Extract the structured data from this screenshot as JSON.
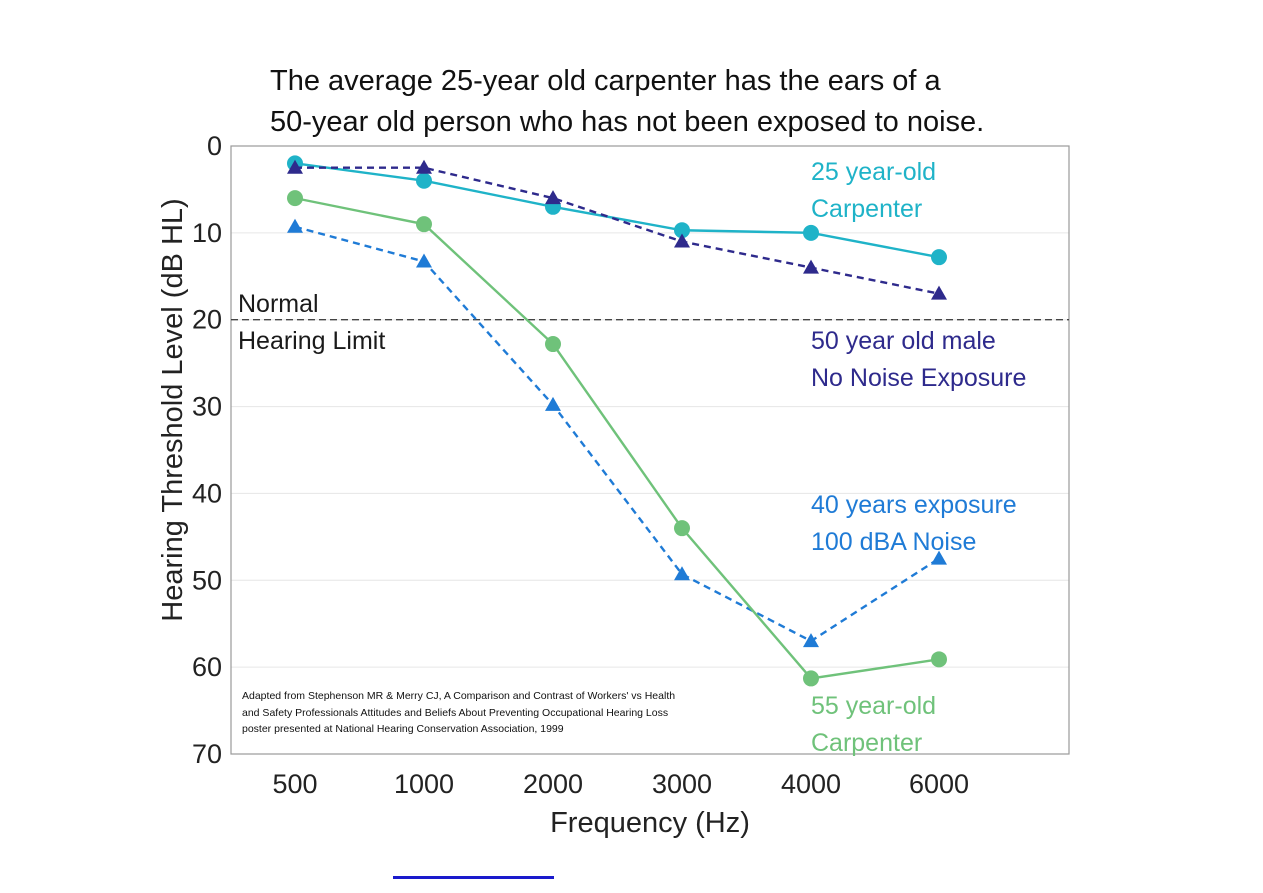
{
  "chart_data": {
    "type": "line",
    "title_lines": [
      "The average 25-year old carpenter has the ears of a",
      "50-year old person who has not been exposed to noise."
    ],
    "xlabel": "Frequency (Hz)",
    "ylabel": "Hearing Threshold Level (dB HL)",
    "categories": [
      "500",
      "1000",
      "2000",
      "3000",
      "4000",
      "6000"
    ],
    "ylim": [
      0,
      70
    ],
    "yticks": [
      0,
      10,
      20,
      30,
      40,
      50,
      60,
      70
    ],
    "y_inverted": true,
    "grid": true,
    "series": [
      {
        "name": "25 year-old Carpenter",
        "label_lines": [
          "25 year-old",
          "Carpenter"
        ],
        "color": "#1fb3c8",
        "marker": "circle",
        "line_style": "solid",
        "values": [
          2,
          4,
          7,
          9.7,
          10,
          12.8
        ]
      },
      {
        "name": "50 year old male No Noise Exposure",
        "label_lines": [
          "50 year old male",
          "No Noise Exposure"
        ],
        "color": "#2e2a8c",
        "marker": "triangle",
        "line_style": "dashed",
        "values": [
          2.5,
          2.5,
          6,
          11,
          14,
          17
        ]
      },
      {
        "name": "40 years exposure 100 dBA Noise",
        "label_lines": [
          "40 years exposure",
          "100 dBA Noise"
        ],
        "color": "#1f7bd6",
        "marker": "triangle",
        "line_style": "dashed",
        "values": [
          9.3,
          13.3,
          29.8,
          49.3,
          57,
          47.5
        ]
      },
      {
        "name": "55 year-old Carpenter",
        "label_lines": [
          "55 year-old",
          "Carpenter"
        ],
        "color": "#6fc27a",
        "marker": "circle",
        "line_style": "solid",
        "values": [
          6,
          9,
          22.8,
          44,
          61.3,
          59.1
        ]
      }
    ],
    "reference_line": {
      "y": 20,
      "label_lines": [
        "Normal",
        "Hearing Limit"
      ],
      "color": "#444444",
      "line_style": "dashed"
    },
    "source_lines": [
      "Adapted from Stephenson MR & Merry CJ, A Comparison and Contrast of Workers' vs Health",
      "and Safety Professionals Attitudes and Beliefs About Preventing Occupational Hearing Loss",
      "poster presented at National Hearing Conservation Association, 1999"
    ]
  }
}
